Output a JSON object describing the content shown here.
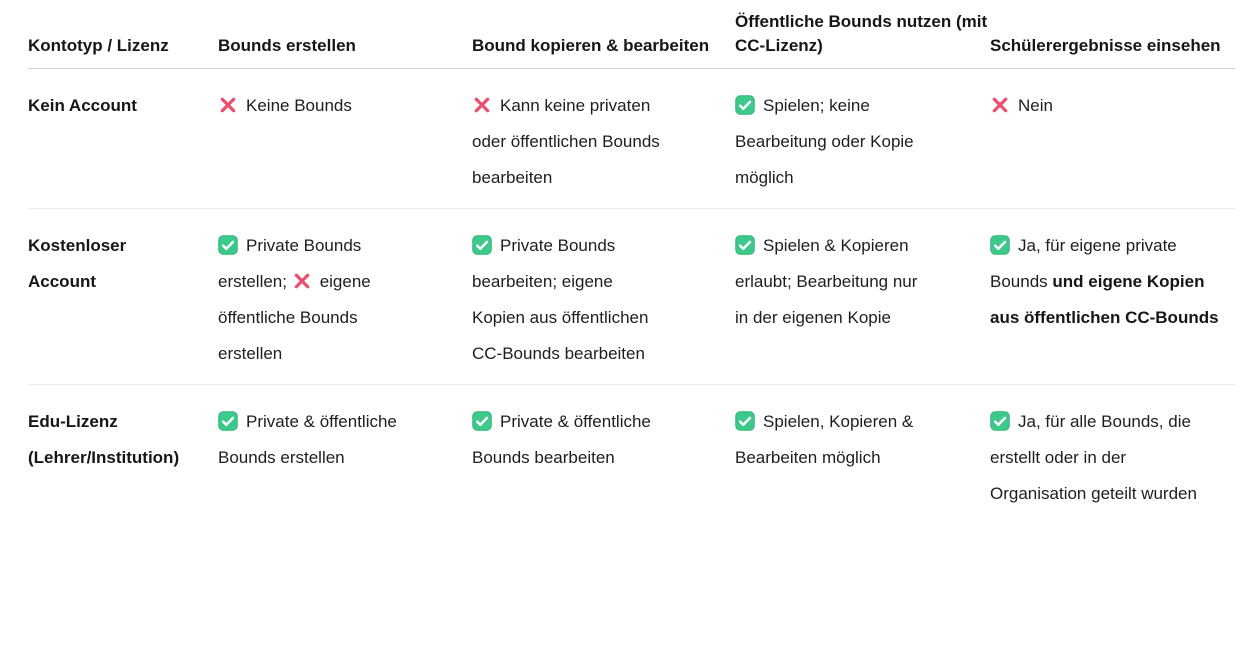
{
  "colors": {
    "text": "#1e1e1e",
    "header_divider": "#d2d2d2",
    "row_divider": "#ececec",
    "check_fill": "#3ec98c",
    "check_border": "#2fb377",
    "check_mark": "#ffffff",
    "cross": "#ec4d6c"
  },
  "table": {
    "columns": [
      {
        "id": "kontotyp",
        "label": "Kontotyp / Lizenz"
      },
      {
        "id": "erstellen",
        "label": "Bounds erstellen"
      },
      {
        "id": "kopieren",
        "label": "Bound kopieren & bearbeiten"
      },
      {
        "id": "nutzen",
        "label": "Öffentliche Bounds nutzen (mit CC-Lizenz)"
      },
      {
        "id": "ergebnisse",
        "label": "Schülerergebnisse einsehen"
      }
    ],
    "rows": [
      {
        "label": "Kein Account",
        "cells": [
          {
            "segments": [
              {
                "icon": "cross"
              },
              {
                "text": "Keine Bounds"
              }
            ]
          },
          {
            "segments": [
              {
                "icon": "cross"
              },
              {
                "text": "Kann keine privaten oder öffentlichen Bounds bearbeiten"
              }
            ]
          },
          {
            "segments": [
              {
                "icon": "check"
              },
              {
                "text": "Spielen; keine Bearbeitung oder Kopie möglich"
              }
            ]
          },
          {
            "segments": [
              {
                "icon": "cross"
              },
              {
                "text": "Nein"
              }
            ]
          }
        ]
      },
      {
        "label": "Kostenloser Account",
        "cells": [
          {
            "segments": [
              {
                "icon": "check"
              },
              {
                "text": "Private Bounds erstellen; "
              },
              {
                "icon": "cross"
              },
              {
                "text": "eigene öffentliche Bounds erstellen"
              }
            ]
          },
          {
            "segments": [
              {
                "icon": "check"
              },
              {
                "text": "Private Bounds bearbeiten; eigene Kopien aus öffentlichen CC-Bounds bearbeiten"
              }
            ]
          },
          {
            "segments": [
              {
                "icon": "check"
              },
              {
                "text": "Spielen & Kopieren erlaubt; Bearbeitung nur in der eigenen Kopie"
              }
            ]
          },
          {
            "segments": [
              {
                "icon": "check"
              },
              {
                "text": "Ja, für eigene private Bounds "
              },
              {
                "text": "und eigene Kopien aus öffentlichen CC-Bounds",
                "bold": true
              }
            ]
          }
        ]
      },
      {
        "label": "Edu-Lizenz (Lehrer/Institution)",
        "cells": [
          {
            "segments": [
              {
                "icon": "check"
              },
              {
                "text": "Private & öffentliche Bounds erstellen"
              }
            ]
          },
          {
            "segments": [
              {
                "icon": "check"
              },
              {
                "text": "Private & öffentliche Bounds bearbeiten"
              }
            ]
          },
          {
            "segments": [
              {
                "icon": "check"
              },
              {
                "text": "Spielen, Kopieren & Bearbeiten möglich"
              }
            ]
          },
          {
            "segments": [
              {
                "icon": "check"
              },
              {
                "text": "Ja, für alle Bounds, die erstellt oder in der Organisation geteilt wurden"
              }
            ]
          }
        ]
      }
    ]
  },
  "icons": {
    "check": "check-icon",
    "cross": "cross-icon"
  }
}
